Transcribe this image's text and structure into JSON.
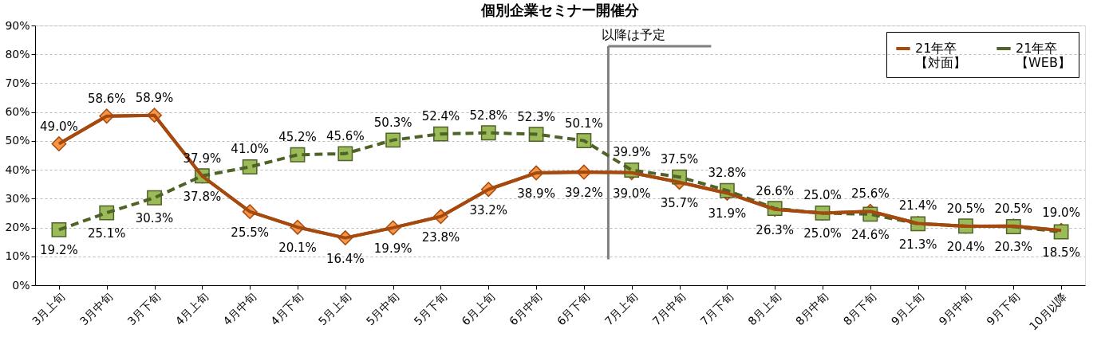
{
  "chart_data": {
    "type": "line",
    "title": "個別企業セミナー開催分",
    "categories": [
      "3月上旬",
      "3月中旬",
      "3月下旬",
      "4月上旬",
      "4月中旬",
      "4月下旬",
      "5月上旬",
      "5月中旬",
      "5月下旬",
      "6月上旬",
      "6月中旬",
      "6月下旬",
      "7月上旬",
      "7月中旬",
      "7月下旬",
      "8月上旬",
      "8月中旬",
      "8月下旬",
      "9月上旬",
      "9月中旬",
      "9月下旬",
      "10月以降"
    ],
    "series": [
      {
        "name": "21年卒【対面】",
        "color": "#a5490f",
        "marker": "diamond",
        "line_style": "solid",
        "values": [
          49.0,
          58.6,
          58.9,
          37.8,
          25.5,
          20.1,
          16.4,
          19.9,
          23.8,
          33.2,
          38.9,
          39.2,
          39.0,
          35.7,
          31.9,
          26.3,
          25.0,
          25.6,
          21.4,
          20.4,
          20.5,
          19.0
        ],
        "value_labels": [
          "49.0%",
          "58.6%",
          "58.9%",
          "37.8%",
          "25.5%",
          "20.1%",
          "16.4%",
          "19.9%",
          "23.8%",
          "33.2%",
          "38.9%",
          "39.2%",
          "39.0%",
          "35.7%",
          "31.9%",
          "26.3%",
          "25.0%",
          "25.6%",
          "21.4%",
          "20.4%",
          "20.5%",
          "19.0%"
        ]
      },
      {
        "name": "21年卒【WEB】",
        "color": "#4f6228",
        "marker": "square",
        "line_style": "dashed",
        "values": [
          19.2,
          25.1,
          30.3,
          37.9,
          41.0,
          45.2,
          45.6,
          50.3,
          52.4,
          52.8,
          52.3,
          50.1,
          39.9,
          37.5,
          32.8,
          26.6,
          25.0,
          24.6,
          21.3,
          20.5,
          20.3,
          18.5
        ],
        "value_labels": [
          "19.2%",
          "25.1%",
          "30.3%",
          "37.9%",
          "41.0%",
          "45.2%",
          "45.6%",
          "50.3%",
          "52.4%",
          "52.8%",
          "52.3%",
          "50.1%",
          "39.9%",
          "37.5%",
          "32.8%",
          "26.6%",
          "25.0%",
          "24.6%",
          "21.3%",
          "20.5%",
          "20.3%",
          "18.5%"
        ]
      }
    ],
    "ylim": [
      0,
      90
    ],
    "yticks": [
      {
        "value": 0,
        "label": "0%"
      },
      {
        "value": 10,
        "label": "10%"
      },
      {
        "value": 20,
        "label": "20%"
      },
      {
        "value": 30,
        "label": "30%"
      },
      {
        "value": 40,
        "label": "40%"
      },
      {
        "value": 50,
        "label": "50%"
      },
      {
        "value": 60,
        "label": "60%"
      },
      {
        "value": 70,
        "label": "70%"
      },
      {
        "value": 80,
        "label": "80%"
      },
      {
        "value": 90,
        "label": "90%"
      }
    ],
    "grid": "y",
    "legend": "top right",
    "ref_lines": [
      {
        "axis": "x",
        "value": "7月上旬",
        "label": "以降は予定",
        "color": "#808080"
      }
    ]
  }
}
